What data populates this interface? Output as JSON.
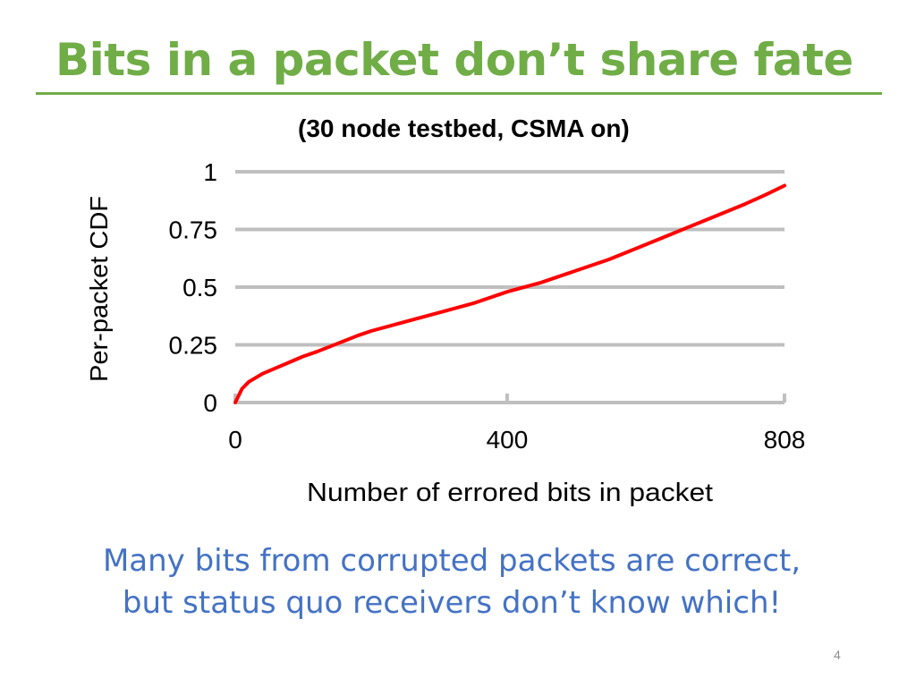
{
  "slide": {
    "title": "Bits in a packet don’t share fate",
    "caption_line1": "Many bits from corrupted packets are correct,",
    "caption_line2": "but status quo receivers don’t know which!",
    "page_number": "4"
  },
  "colors": {
    "title": "#70ad47",
    "caption": "#4472c4",
    "series": "#ff0000",
    "grid": "#bfbfbf"
  },
  "chart_data": {
    "type": "line",
    "title": "(30 node testbed, CSMA on)",
    "xlabel": "Number of errored bits in packet",
    "ylabel": "Per-packet CDF",
    "xlim": [
      0,
      808
    ],
    "ylim": [
      0,
      1
    ],
    "x_ticks": [
      0,
      400,
      808
    ],
    "x_tick_labels": [
      "0",
      "400",
      "808"
    ],
    "y_ticks": [
      0,
      0.25,
      0.5,
      0.75,
      1
    ],
    "y_tick_labels": [
      "0",
      "0.25",
      "0.5",
      "0.75",
      "1"
    ],
    "grid": true,
    "legend": "none",
    "series": [
      {
        "x": [
          0,
          5,
          10,
          20,
          40,
          60,
          80,
          100,
          120,
          150,
          180,
          200,
          250,
          300,
          350,
          400,
          450,
          500,
          550,
          600,
          650,
          700,
          750,
          780,
          808
        ],
        "y": [
          0,
          0.03,
          0.06,
          0.09,
          0.125,
          0.15,
          0.175,
          0.2,
          0.22,
          0.255,
          0.29,
          0.31,
          0.35,
          0.39,
          0.43,
          0.48,
          0.52,
          0.57,
          0.62,
          0.68,
          0.74,
          0.8,
          0.86,
          0.9,
          0.94
        ]
      }
    ]
  }
}
